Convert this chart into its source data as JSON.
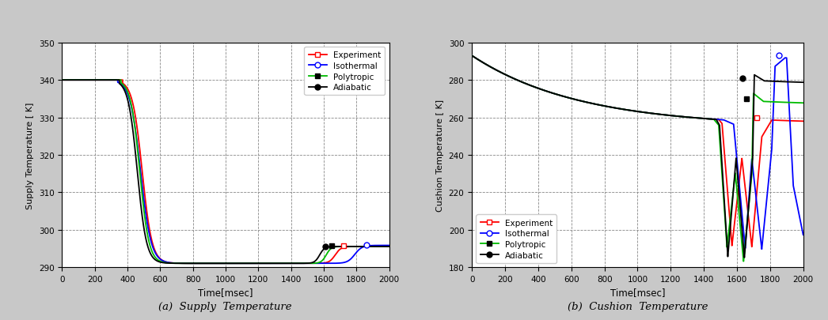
{
  "fig_width": 10.46,
  "fig_height": 4.06,
  "bg_color": "#c8c8c8",
  "plot_bg_color": "#ffffff",
  "subplot_a": {
    "title": "(a)  Supply  Temperature",
    "xlabel": "Time[msec]",
    "ylabel": "Supply Temperature [ K]",
    "xlim": [
      0,
      2000
    ],
    "ylim": [
      290,
      350
    ],
    "yticks": [
      290,
      300,
      310,
      320,
      330,
      340,
      350
    ],
    "xticks": [
      0,
      200,
      400,
      600,
      800,
      1000,
      1200,
      1400,
      1600,
      1800,
      2000
    ],
    "colors": {
      "experiment": "#ff0000",
      "isothermal": "#0000ff",
      "polytropic": "#00bb00",
      "adiabatic": "#000000"
    },
    "legend_loc": "upper right"
  },
  "subplot_b": {
    "title": "(b)  Cushion  Temperature",
    "xlabel": "Time[msec]",
    "ylabel": "Cushion Temperature [ K]",
    "xlim": [
      0,
      2000
    ],
    "ylim": [
      180,
      300
    ],
    "yticks": [
      180,
      200,
      220,
      240,
      260,
      280,
      300
    ],
    "xticks": [
      0,
      200,
      400,
      600,
      800,
      1000,
      1200,
      1400,
      1600,
      1800,
      2000
    ],
    "colors": {
      "experiment": "#ff0000",
      "isothermal": "#0000ff",
      "polytropic": "#00bb00",
      "adiabatic": "#000000"
    },
    "legend_loc": "lower left"
  }
}
